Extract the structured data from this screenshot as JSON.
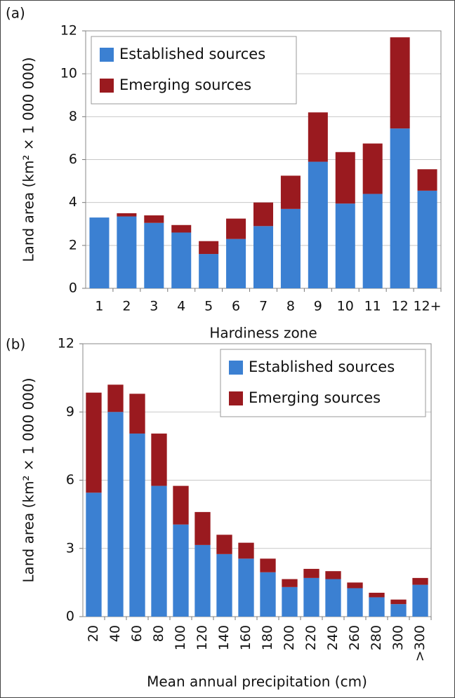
{
  "chart_data": [
    {
      "type": "bar",
      "stacked": true,
      "panel_label": "(a)",
      "xlabel": "Hardiness zone",
      "ylabel": "Land area (km² × 1 000 000)",
      "categories": [
        "1",
        "2",
        "3",
        "4",
        "5",
        "6",
        "7",
        "8",
        "9",
        "10",
        "11",
        "12",
        "12+"
      ],
      "series": [
        {
          "name": "Established sources",
          "color": "#3b80d2",
          "values": [
            3.3,
            3.35,
            3.05,
            2.6,
            1.6,
            2.3,
            2.9,
            3.7,
            5.9,
            3.95,
            4.4,
            7.45,
            4.55
          ]
        },
        {
          "name": "Emerging sources",
          "color": "#9a1a1f",
          "values": [
            0,
            0.15,
            0.35,
            0.35,
            0.6,
            0.95,
            1.1,
            1.55,
            2.3,
            2.4,
            2.35,
            4.25,
            1.0
          ]
        }
      ],
      "ylim": [
        0,
        12
      ],
      "yticks": [
        0,
        2,
        4,
        6,
        8,
        10,
        12
      ],
      "grid": true,
      "legend": "upper left"
    },
    {
      "type": "bar",
      "stacked": true,
      "panel_label": "(b)",
      "xlabel": "Mean annual precipitation (cm)",
      "ylabel": "Land area (km² × 1 000 000)",
      "categories": [
        "20",
        "40",
        "60",
        "80",
        "100",
        "120",
        "140",
        "160",
        "180",
        "200",
        "220",
        "240",
        "260",
        "280",
        "300",
        ">300"
      ],
      "series": [
        {
          "name": "Established sources",
          "color": "#3b80d2",
          "values": [
            5.45,
            9.0,
            8.05,
            5.75,
            4.05,
            3.15,
            2.75,
            2.55,
            1.95,
            1.3,
            1.7,
            1.65,
            1.25,
            0.85,
            0.55,
            1.4
          ]
        },
        {
          "name": "Emerging sources",
          "color": "#9a1a1f",
          "values": [
            4.4,
            1.2,
            1.75,
            2.3,
            1.7,
            1.45,
            0.85,
            0.7,
            0.6,
            0.35,
            0.4,
            0.35,
            0.25,
            0.2,
            0.2,
            0.3
          ]
        }
      ],
      "ylim": [
        0,
        12
      ],
      "yticks": [
        0,
        3,
        6,
        9,
        12
      ],
      "grid": true,
      "legend": "upper right"
    }
  ]
}
